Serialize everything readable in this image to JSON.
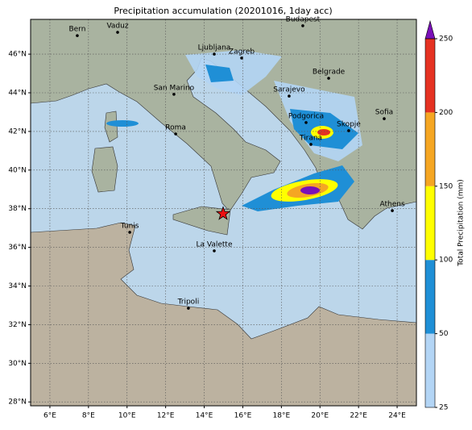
{
  "title": "Precipitation accumulation (20201016, 1day acc)",
  "map": {
    "xlim": [
      5,
      25
    ],
    "ylim": [
      27.8,
      47.8
    ],
    "lon_ticks": [
      {
        "value": 6,
        "label": "6°E"
      },
      {
        "value": 8,
        "label": "8°E"
      },
      {
        "value": 10,
        "label": "10°E"
      },
      {
        "value": 12,
        "label": "12°E"
      },
      {
        "value": 14,
        "label": "14°E"
      },
      {
        "value": 16,
        "label": "16°E"
      },
      {
        "value": 18,
        "label": "18°E"
      },
      {
        "value": 20,
        "label": "20°E"
      },
      {
        "value": 22,
        "label": "22°E"
      },
      {
        "value": 24,
        "label": "24°E"
      }
    ],
    "lat_ticks": [
      {
        "value": 28,
        "label": "28°N"
      },
      {
        "value": 30,
        "label": "30°N"
      },
      {
        "value": 32,
        "label": "32°N"
      },
      {
        "value": 34,
        "label": "34°N"
      },
      {
        "value": 36,
        "label": "36°N"
      },
      {
        "value": 38,
        "label": "38°N"
      },
      {
        "value": 40,
        "label": "40°N"
      },
      {
        "value": 42,
        "label": "42°N"
      },
      {
        "value": 44,
        "label": "44°N"
      },
      {
        "value": 46,
        "label": "46°N"
      }
    ],
    "grid": true,
    "cities": [
      {
        "name": "Bern",
        "lon": 7.42,
        "lat": 46.96
      },
      {
        "name": "Vaduz",
        "lon": 9.51,
        "lat": 47.13
      },
      {
        "name": "Budapest",
        "lon": 19.11,
        "lat": 47.47
      },
      {
        "name": "Ljubljana",
        "lon": 14.52,
        "lat": 46.0
      },
      {
        "name": "Zagreb",
        "lon": 15.94,
        "lat": 45.8
      },
      {
        "name": "Belgrade",
        "lon": 20.45,
        "lat": 44.75
      },
      {
        "name": "San Marino",
        "lon": 12.43,
        "lat": 43.92
      },
      {
        "name": "Sarajevo",
        "lon": 18.4,
        "lat": 43.83
      },
      {
        "name": "Sofia",
        "lon": 23.33,
        "lat": 42.66
      },
      {
        "name": "Roma",
        "lon": 12.52,
        "lat": 41.87
      },
      {
        "name": "Podgorica",
        "lon": 19.28,
        "lat": 42.46
      },
      {
        "name": "Skopje",
        "lon": 21.49,
        "lat": 42.04
      },
      {
        "name": "Tirana",
        "lon": 19.53,
        "lat": 41.33
      },
      {
        "name": "Athens",
        "lon": 23.75,
        "lat": 37.9
      },
      {
        "name": "Tunis",
        "lon": 10.14,
        "lat": 36.78
      },
      {
        "name": "La Valette",
        "lon": 14.52,
        "lat": 35.82
      },
      {
        "name": "Tripoli",
        "lon": 13.18,
        "lat": 32.85
      }
    ],
    "marker": {
      "lon": 14.98,
      "lat": 37.74,
      "color": "#ee1111"
    }
  },
  "colorbar": {
    "label": "Total Precipitation (mm)",
    "ticks": [
      25,
      50,
      100,
      150,
      200,
      250
    ],
    "colors": [
      "#b3d5f5",
      "#1f8fd6",
      "#ffff00",
      "#f5a623",
      "#e53222"
    ],
    "extend_color": "#7a10b8"
  }
}
